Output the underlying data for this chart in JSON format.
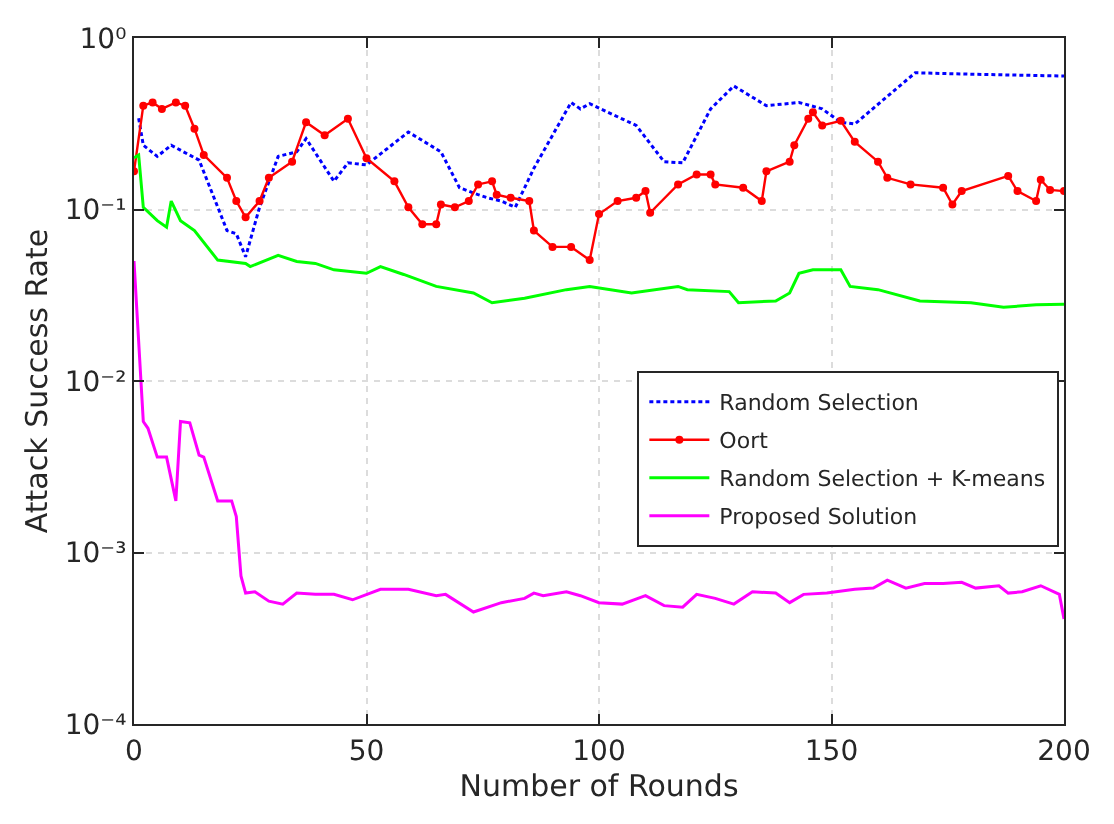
{
  "chart_data": {
    "type": "line",
    "xlabel": "Number of Rounds",
    "ylabel": "Attack Success Rate",
    "log": "y",
    "grid": true,
    "legend": "center right",
    "xlim": [
      0,
      200
    ],
    "xticks": [
      0,
      50,
      100,
      150,
      200
    ],
    "ylim": [
      0.0001,
      1
    ],
    "yticks": [
      {
        "value": 0.0001,
        "label": "10⁻⁴"
      },
      {
        "value": 0.001,
        "label": "10⁻³"
      },
      {
        "value": 0.01,
        "label": "10⁻²"
      },
      {
        "value": 0.1,
        "label": "10⁻¹"
      },
      {
        "value": 1,
        "label": "10⁰"
      }
    ],
    "series": [
      {
        "name": "Random Selection",
        "color": "#0000ff",
        "line_style": "dotted",
        "marker": "none",
        "x": [
          1,
          2,
          5,
          8,
          14,
          20,
          22,
          24,
          27,
          31,
          35,
          37,
          43,
          46,
          50,
          59,
          66,
          70,
          74,
          76,
          79,
          82,
          86,
          94,
          96,
          98,
          108,
          114,
          118,
          124,
          129,
          136,
          143,
          148,
          152,
          155,
          168,
          180,
          200
        ],
        "values": [
          0.34,
          0.237,
          0.204,
          0.237,
          0.194,
          0.0754,
          0.0722,
          0.053,
          0.103,
          0.204,
          0.217,
          0.259,
          0.146,
          0.187,
          0.182,
          0.283,
          0.217,
          0.134,
          0.122,
          0.117,
          0.112,
          0.103,
          0.174,
          0.421,
          0.386,
          0.414,
          0.309,
          0.19,
          0.187,
          0.386,
          0.525,
          0.403,
          0.421,
          0.386,
          0.323,
          0.315,
          0.627,
          0.615,
          0.6
        ]
      },
      {
        "name": "Oort",
        "color": "#ff0000",
        "line_style": "solid",
        "marker": "circle",
        "x": [
          0,
          2,
          4,
          6,
          9,
          11,
          13,
          15,
          20,
          22,
          24,
          27,
          29,
          34,
          37,
          41,
          46,
          50,
          56,
          59,
          62,
          65,
          66,
          69,
          72,
          74,
          77,
          78,
          81,
          85,
          86,
          90,
          94,
          98,
          100,
          104,
          108,
          110,
          111,
          117,
          121,
          124,
          125,
          131,
          135,
          136,
          141,
          142,
          145,
          146,
          148,
          152,
          155,
          160,
          162,
          167,
          174,
          176,
          178,
          188,
          190,
          194,
          195,
          197,
          200
        ],
        "values": [
          0.167,
          0.403,
          0.421,
          0.386,
          0.421,
          0.403,
          0.296,
          0.208,
          0.153,
          0.112,
          0.09,
          0.112,
          0.153,
          0.19,
          0.323,
          0.271,
          0.338,
          0.199,
          0.146,
          0.103,
          0.082,
          0.082,
          0.107,
          0.103,
          0.112,
          0.14,
          0.146,
          0.122,
          0.117,
          0.112,
          0.0754,
          0.0605,
          0.0605,
          0.0507,
          0.094,
          0.112,
          0.117,
          0.128,
          0.0957,
          0.14,
          0.16,
          0.16,
          0.14,
          0.134,
          0.112,
          0.167,
          0.19,
          0.237,
          0.338,
          0.369,
          0.309,
          0.329,
          0.248,
          0.19,
          0.153,
          0.14,
          0.134,
          0.107,
          0.128,
          0.157,
          0.128,
          0.112,
          0.149,
          0.13,
          0.128
        ]
      },
      {
        "name": "Random Selection + K-means",
        "color": "#00ff00",
        "line_style": "solid",
        "marker": "none",
        "x": [
          0,
          1,
          2,
          5,
          7,
          8,
          10,
          13,
          18,
          24,
          25,
          31,
          35,
          39,
          43,
          50,
          53,
          58,
          65,
          73,
          77,
          84,
          93,
          98,
          107,
          117,
          119,
          128,
          130,
          138,
          141,
          143,
          146,
          152,
          154,
          160,
          169,
          180,
          187,
          194,
          200
        ],
        "values": [
          0.2,
          0.208,
          0.103,
          0.0861,
          0.0788,
          0.112,
          0.0861,
          0.0754,
          0.0507,
          0.0485,
          0.0465,
          0.054,
          0.0498,
          0.0485,
          0.0445,
          0.0425,
          0.0465,
          0.0418,
          0.0356,
          0.0326,
          0.0286,
          0.0304,
          0.0341,
          0.0356,
          0.0326,
          0.0356,
          0.0341,
          0.0332,
          0.0286,
          0.0293,
          0.0326,
          0.0425,
          0.0445,
          0.0445,
          0.0356,
          0.0341,
          0.0293,
          0.0286,
          0.0269,
          0.0278,
          0.028
        ]
      },
      {
        "name": "Proposed Solution",
        "color": "#ff00ff",
        "line_style": "solid",
        "marker": "none",
        "x": [
          0,
          2,
          3,
          5,
          7,
          9,
          10,
          12,
          14,
          15,
          18,
          21,
          22,
          23,
          24,
          26,
          29,
          32,
          35,
          39,
          43,
          47,
          53,
          59,
          65,
          67,
          73,
          79,
          84,
          86,
          88,
          93,
          96,
          100,
          105,
          110,
          114,
          118,
          121,
          125,
          129,
          133,
          138,
          141,
          144,
          149,
          155,
          159,
          162,
          166,
          170,
          174,
          178,
          181,
          186,
          188,
          191,
          195,
          199,
          200
        ],
        "values": [
          0.05,
          0.0058,
          0.0053,
          0.0036,
          0.0036,
          0.002,
          0.0058,
          0.0057,
          0.0037,
          0.0036,
          0.002,
          0.002,
          0.00162,
          0.00073,
          0.00058,
          0.00059,
          0.00052,
          0.0005,
          0.00058,
          0.00057,
          0.00057,
          0.00053,
          0.00061,
          0.00061,
          0.00056,
          0.00057,
          0.00045,
          0.00051,
          0.00054,
          0.00058,
          0.00056,
          0.00059,
          0.00056,
          0.00051,
          0.0005,
          0.00056,
          0.00049,
          0.00048,
          0.00057,
          0.00054,
          0.0005,
          0.00059,
          0.00058,
          0.00051,
          0.00057,
          0.00058,
          0.00061,
          0.00062,
          0.00069,
          0.00062,
          0.00066,
          0.00066,
          0.00067,
          0.00062,
          0.00064,
          0.00058,
          0.00059,
          0.00064,
          0.00057,
          0.00041
        ]
      }
    ]
  }
}
